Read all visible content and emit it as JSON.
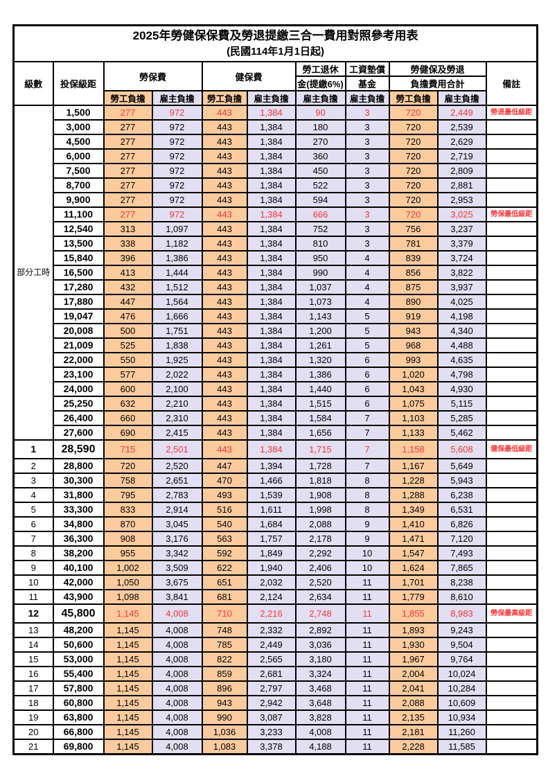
{
  "title": {
    "line1": "2025年勞健保保費及勞退提繳三合一費用對照參考用表",
    "line2": "(民國114年1月1日起)"
  },
  "colors": {
    "employee_bg": "#FBCB9E",
    "employer_bg": "#E1DFF1",
    "highlight_text": "#FF3333",
    "border": "#000000"
  },
  "header": {
    "level": "級數",
    "bracket": "投保級距",
    "labor_ins": "勞保費",
    "health_ins": "健保費",
    "pension_l1": "勞工退休",
    "pension_l2": "金(提繳6%)",
    "wage_fund_l1": "工資墊償",
    "wage_fund_l2": "基金",
    "total_l1": "勞健保及勞退",
    "total_l2": "負擔費用合計",
    "remark": "備註",
    "employee": "勞工負擔",
    "employer": "雇主負擔"
  },
  "table": {
    "rows": [
      {
        "level": "部分工時",
        "levelRowspan": 23,
        "levelClass": "parttime",
        "bracket": "1,500",
        "values": [
          "277",
          "972",
          "443",
          "1,384",
          "90",
          "3",
          "720",
          "2,449"
        ],
        "note": "勞退最低級距",
        "red": true
      },
      {
        "bracket": "3,000",
        "values": [
          "277",
          "972",
          "443",
          "1,384",
          "180",
          "3",
          "720",
          "2,539"
        ],
        "note": ""
      },
      {
        "bracket": "4,500",
        "values": [
          "277",
          "972",
          "443",
          "1,384",
          "270",
          "3",
          "720",
          "2,629"
        ],
        "note": ""
      },
      {
        "bracket": "6,000",
        "values": [
          "277",
          "972",
          "443",
          "1,384",
          "360",
          "3",
          "720",
          "2,719"
        ],
        "note": ""
      },
      {
        "bracket": "7,500",
        "values": [
          "277",
          "972",
          "443",
          "1,384",
          "450",
          "3",
          "720",
          "2,809"
        ],
        "note": ""
      },
      {
        "bracket": "8,700",
        "values": [
          "277",
          "972",
          "443",
          "1,384",
          "522",
          "3",
          "720",
          "2,881"
        ],
        "note": ""
      },
      {
        "bracket": "9,900",
        "values": [
          "277",
          "972",
          "443",
          "1,384",
          "594",
          "3",
          "720",
          "2,953"
        ],
        "note": ""
      },
      {
        "bracket": "11,100",
        "values": [
          "277",
          "972",
          "443",
          "1,384",
          "666",
          "3",
          "720",
          "3,025"
        ],
        "note": "勞保最低級距",
        "red": true
      },
      {
        "bracket": "12,540",
        "values": [
          "313",
          "1,097",
          "443",
          "1,384",
          "752",
          "3",
          "756",
          "3,237"
        ],
        "note": ""
      },
      {
        "bracket": "13,500",
        "values": [
          "338",
          "1,182",
          "443",
          "1,384",
          "810",
          "3",
          "781",
          "3,379"
        ],
        "note": ""
      },
      {
        "bracket": "15,840",
        "values": [
          "396",
          "1,386",
          "443",
          "1,384",
          "950",
          "4",
          "839",
          "3,724"
        ],
        "note": ""
      },
      {
        "bracket": "16,500",
        "values": [
          "413",
          "1,444",
          "443",
          "1,384",
          "990",
          "4",
          "856",
          "3,822"
        ],
        "note": ""
      },
      {
        "bracket": "17,280",
        "values": [
          "432",
          "1,512",
          "443",
          "1,384",
          "1,037",
          "4",
          "875",
          "3,937"
        ],
        "note": ""
      },
      {
        "bracket": "17,880",
        "values": [
          "447",
          "1,564",
          "443",
          "1,384",
          "1,073",
          "4",
          "890",
          "4,025"
        ],
        "note": ""
      },
      {
        "bracket": "19,047",
        "values": [
          "476",
          "1,666",
          "443",
          "1,384",
          "1,143",
          "5",
          "919",
          "4,198"
        ],
        "note": ""
      },
      {
        "bracket": "20,008",
        "values": [
          "500",
          "1,751",
          "443",
          "1,384",
          "1,200",
          "5",
          "943",
          "4,340"
        ],
        "note": ""
      },
      {
        "bracket": "21,009",
        "values": [
          "525",
          "1,838",
          "443",
          "1,384",
          "1,261",
          "5",
          "968",
          "4,488"
        ],
        "note": ""
      },
      {
        "bracket": "22,000",
        "values": [
          "550",
          "1,925",
          "443",
          "1,384",
          "1,320",
          "6",
          "993",
          "4,635"
        ],
        "note": ""
      },
      {
        "bracket": "23,100",
        "values": [
          "577",
          "2,022",
          "443",
          "1,384",
          "1,386",
          "6",
          "1,020",
          "4,798"
        ],
        "note": ""
      },
      {
        "bracket": "24,000",
        "values": [
          "600",
          "2,100",
          "443",
          "1,384",
          "1,440",
          "6",
          "1,043",
          "4,930"
        ],
        "note": ""
      },
      {
        "bracket": "25,250",
        "values": [
          "632",
          "2,210",
          "443",
          "1,384",
          "1,515",
          "6",
          "1,075",
          "5,115"
        ],
        "note": ""
      },
      {
        "bracket": "26,400",
        "values": [
          "660",
          "2,310",
          "443",
          "1,384",
          "1,584",
          "7",
          "1,103",
          "5,285"
        ],
        "note": ""
      },
      {
        "bracket": "27,600",
        "values": [
          "690",
          "2,415",
          "443",
          "1,384",
          "1,656",
          "7",
          "1,133",
          "5,462"
        ],
        "note": ""
      },
      {
        "level": "1",
        "bracket": "28,590",
        "values": [
          "715",
          "2,501",
          "443",
          "1,384",
          "1,715",
          "7",
          "1,158",
          "5,608"
        ],
        "note": "健保最低級距",
        "red": true,
        "big": true
      },
      {
        "level": "2",
        "bracket": "28,800",
        "values": [
          "720",
          "2,520",
          "447",
          "1,394",
          "1,728",
          "7",
          "1,167",
          "5,649"
        ],
        "note": ""
      },
      {
        "level": "3",
        "bracket": "30,300",
        "values": [
          "758",
          "2,651",
          "470",
          "1,466",
          "1,818",
          "8",
          "1,228",
          "5,943"
        ],
        "note": ""
      },
      {
        "level": "4",
        "bracket": "31,800",
        "values": [
          "795",
          "2,783",
          "493",
          "1,539",
          "1,908",
          "8",
          "1,288",
          "6,238"
        ],
        "note": ""
      },
      {
        "level": "5",
        "bracket": "33,300",
        "values": [
          "833",
          "2,914",
          "516",
          "1,611",
          "1,998",
          "8",
          "1,349",
          "6,531"
        ],
        "note": ""
      },
      {
        "level": "6",
        "bracket": "34,800",
        "values": [
          "870",
          "3,045",
          "540",
          "1,684",
          "2,088",
          "9",
          "1,410",
          "6,826"
        ],
        "note": ""
      },
      {
        "level": "7",
        "bracket": "36,300",
        "values": [
          "908",
          "3,176",
          "563",
          "1,757",
          "2,178",
          "9",
          "1,471",
          "7,120"
        ],
        "note": ""
      },
      {
        "level": "8",
        "bracket": "38,200",
        "values": [
          "955",
          "3,342",
          "592",
          "1,849",
          "2,292",
          "10",
          "1,547",
          "7,493"
        ],
        "note": ""
      },
      {
        "level": "9",
        "bracket": "40,100",
        "values": [
          "1,002",
          "3,509",
          "622",
          "1,940",
          "2,406",
          "10",
          "1,624",
          "7,865"
        ],
        "note": ""
      },
      {
        "level": "10",
        "bracket": "42,000",
        "values": [
          "1,050",
          "3,675",
          "651",
          "2,032",
          "2,520",
          "11",
          "1,701",
          "8,238"
        ],
        "note": ""
      },
      {
        "level": "11",
        "bracket": "43,900",
        "values": [
          "1,098",
          "3,841",
          "681",
          "2,124",
          "2,634",
          "11",
          "1,779",
          "8,610"
        ],
        "note": ""
      },
      {
        "level": "12",
        "bracket": "45,800",
        "values": [
          "1,145",
          "4,008",
          "710",
          "2,216",
          "2,748",
          "11",
          "1,855",
          "8,983"
        ],
        "note": "勞保最高級距",
        "red": true,
        "big": true
      },
      {
        "level": "13",
        "bracket": "48,200",
        "values": [
          "1,145",
          "4,008",
          "748",
          "2,332",
          "2,892",
          "11",
          "1,893",
          "9,243"
        ],
        "note": ""
      },
      {
        "level": "14",
        "bracket": "50,600",
        "values": [
          "1,145",
          "4,008",
          "785",
          "2,449",
          "3,036",
          "11",
          "1,930",
          "9,504"
        ],
        "note": ""
      },
      {
        "level": "15",
        "bracket": "53,000",
        "values": [
          "1,145",
          "4,008",
          "822",
          "2,565",
          "3,180",
          "11",
          "1,967",
          "9,764"
        ],
        "note": ""
      },
      {
        "level": "16",
        "bracket": "55,400",
        "values": [
          "1,145",
          "4,008",
          "859",
          "2,681",
          "3,324",
          "11",
          "2,004",
          "10,024"
        ],
        "note": ""
      },
      {
        "level": "17",
        "bracket": "57,800",
        "values": [
          "1,145",
          "4,008",
          "896",
          "2,797",
          "3,468",
          "11",
          "2,041",
          "10,284"
        ],
        "note": ""
      },
      {
        "level": "18",
        "bracket": "60,800",
        "values": [
          "1,145",
          "4,008",
          "943",
          "2,942",
          "3,648",
          "11",
          "2,088",
          "10,609"
        ],
        "note": ""
      },
      {
        "level": "19",
        "bracket": "63,800",
        "values": [
          "1,145",
          "4,008",
          "990",
          "3,087",
          "3,828",
          "11",
          "2,135",
          "10,934"
        ],
        "note": ""
      },
      {
        "level": "20",
        "bracket": "66,800",
        "values": [
          "1,145",
          "4,008",
          "1,036",
          "3,233",
          "4,008",
          "11",
          "2,181",
          "11,260"
        ],
        "note": ""
      },
      {
        "level": "21",
        "bracket": "69,800",
        "values": [
          "1,145",
          "4,008",
          "1,083",
          "3,378",
          "4,188",
          "11",
          "2,228",
          "11,585"
        ],
        "note": ""
      }
    ]
  }
}
